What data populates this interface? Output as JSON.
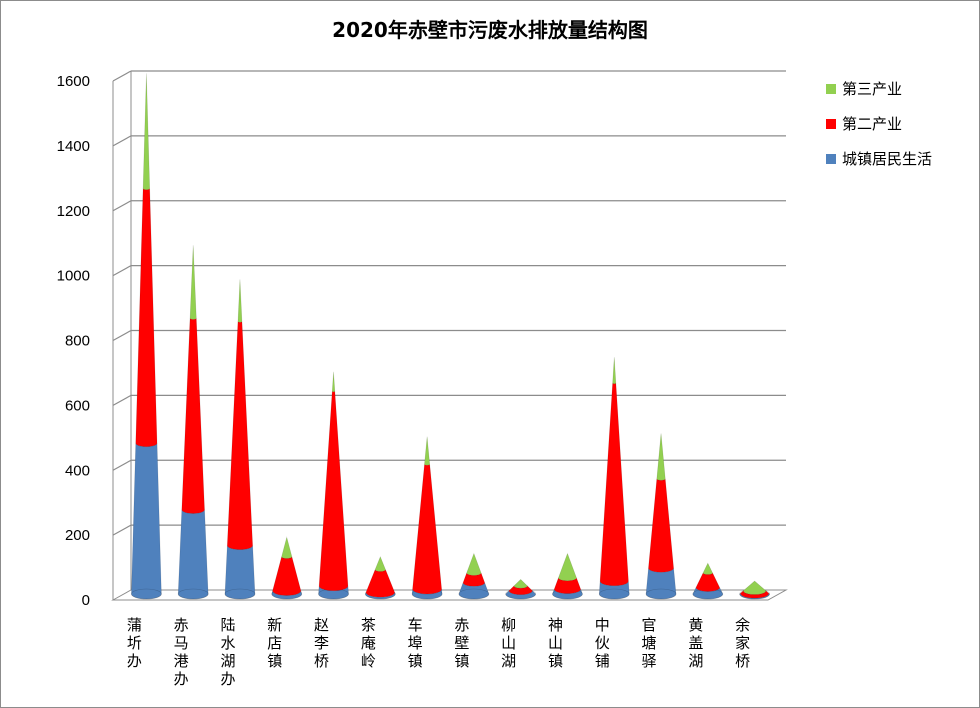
{
  "chart_data": {
    "type": "bar",
    "title": "2020年赤壁市污废水排放量结构图",
    "xlabel": "",
    "ylabel": "",
    "ylim": [
      0,
      1600
    ],
    "yticks": [
      0,
      200,
      400,
      600,
      800,
      1000,
      1200,
      1400,
      1600
    ],
    "stacked": true,
    "bar_shape": "cone",
    "grid": true,
    "legend_position": "right",
    "categories": [
      "蒲圻办",
      "赤马港办",
      "陆水湖办",
      "新店镇",
      "赵李桥",
      "茶庵岭",
      "车埠镇",
      "赤壁镇",
      "柳山湖",
      "神山镇",
      "中伙铺",
      "官塘驿",
      "黄盖湖",
      "余家桥"
    ],
    "series": [
      {
        "name": "城镇居民生活",
        "color": "#4f81bd",
        "values": [
          465,
          260,
          150,
          10,
          25,
          5,
          15,
          35,
          10,
          15,
          40,
          80,
          20,
          2
        ]
      },
      {
        "name": "第二产业",
        "color": "#ff0000",
        "values": [
          785,
          590,
          690,
          105,
          600,
          70,
          385,
          30,
          15,
          35,
          610,
          275,
          45,
          8
        ]
      },
      {
        "name": "第三产业",
        "color": "#92d050",
        "values": [
          355,
          225,
          130,
          60,
          60,
          40,
          85,
          60,
          20,
          75,
          80,
          140,
          30,
          30
        ]
      }
    ]
  }
}
